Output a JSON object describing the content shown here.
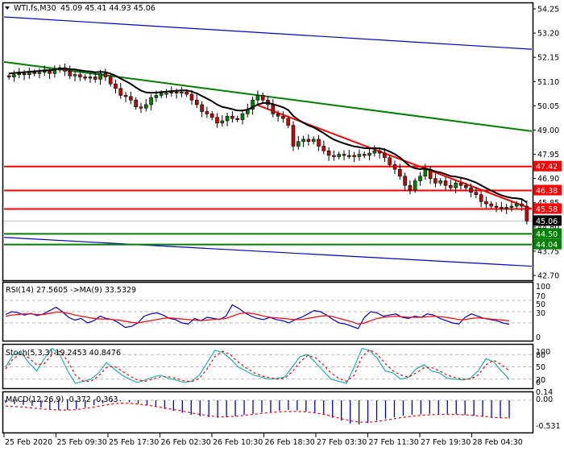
{
  "header": {
    "symbol_label": "WTI.fs,M30",
    "ohlc": "45.09 45.41 44.93 45.06",
    "dropdown_icon": "triangle-down-icon"
  },
  "chart_data": [
    {
      "type": "candlestick",
      "title": "WTI.fs,M30  45.09 45.41 44.93 45.06",
      "symbol": "WTI.fs",
      "timeframe": "M30",
      "ohlc_last": {
        "open": 45.09,
        "high": 45.41,
        "low": 44.93,
        "close": 45.06
      },
      "ylim": [
        42.7,
        54.25
      ],
      "y_ticks": [
        54.25,
        53.2,
        52.15,
        51.1,
        50.05,
        49.0,
        47.95,
        46.9,
        45.85,
        44.8,
        43.75,
        42.7
      ],
      "x_tick_labels": [
        "25 Feb 2020",
        "25 Feb 09:30",
        "25 Feb 17:30",
        "26 Feb 02:30",
        "26 Feb 10:30",
        "26 Feb 18:30",
        "27 Feb 03:30",
        "27 Feb 11:30",
        "27 Feb 19:30",
        "28 Feb 04:30"
      ],
      "horizontal_levels": [
        {
          "value": 47.42,
          "color": "#ff0000"
        },
        {
          "value": 46.38,
          "color": "#ff0000"
        },
        {
          "value": 45.58,
          "color": "#ff0000"
        },
        {
          "value": 44.5,
          "color": "#008000"
        },
        {
          "value": 44.04,
          "color": "#008000"
        }
      ],
      "current_price": {
        "value": 45.06,
        "color": "#000000"
      },
      "trend_lines": [
        {
          "name": "upper channel",
          "color": "#0000cc",
          "from": [
            0,
            53.9
          ],
          "to": [
            660,
            52.5
          ]
        },
        {
          "name": "lower channel",
          "color": "#0000cc",
          "from": [
            0,
            44.35
          ],
          "to": [
            660,
            43.1
          ]
        },
        {
          "name": "green trend",
          "color": "#008000",
          "from": [
            0,
            51.95
          ],
          "to": [
            660,
            48.95
          ]
        },
        {
          "name": "red resistance",
          "color": "#ff0000",
          "from": [
            318,
            50.1
          ],
          "to": [
            660,
            45.58
          ]
        }
      ],
      "close_series": [
        51.3,
        51.4,
        51.45,
        51.4,
        51.5,
        51.45,
        51.5,
        51.55,
        51.45,
        51.6,
        51.7,
        51.55,
        51.35,
        51.4,
        51.3,
        51.25,
        51.3,
        51.2,
        51.45,
        51.3,
        51.0,
        50.8,
        50.5,
        50.45,
        50.3,
        50.0,
        49.95,
        50.1,
        50.4,
        50.5,
        50.6,
        50.6,
        50.65,
        50.6,
        50.65,
        50.55,
        50.3,
        50.1,
        49.8,
        49.7,
        49.55,
        49.3,
        49.4,
        49.6,
        49.5,
        49.45,
        49.7,
        49.9,
        50.3,
        50.5,
        50.3,
        50.1,
        49.7,
        49.6,
        49.5,
        49.2,
        48.3,
        48.5,
        48.6,
        48.5,
        48.6,
        48.3,
        48.1,
        47.9,
        47.85,
        47.95,
        47.9,
        47.9,
        47.85,
        47.95,
        47.9,
        48.0,
        48.1,
        48.0,
        47.8,
        47.5,
        47.3,
        47.0,
        46.6,
        46.4,
        46.8,
        47.0,
        47.3,
        46.9,
        46.7,
        46.8,
        46.6,
        46.5,
        46.7,
        46.6,
        46.5,
        46.3,
        46.2,
        45.9,
        45.8,
        45.7,
        45.65,
        45.6,
        45.65,
        45.7,
        45.8,
        45.7,
        45.06
      ],
      "moving_average_color": "#000000",
      "up_candle_color": "#008000",
      "down_candle_color": "#cc0000"
    },
    {
      "type": "line",
      "title": "RSI(14) 27.5605 ->MA(9) 33.5329",
      "ylim": [
        0,
        100
      ],
      "y_ticks": [
        100,
        70,
        50,
        30,
        0
      ],
      "levels": [
        70,
        50,
        30
      ],
      "series": [
        {
          "name": "RSI(14)",
          "color": "#0000cc",
          "last": 27.5605,
          "values": [
            45,
            50,
            48,
            44,
            47,
            43,
            46,
            52,
            58,
            50,
            40,
            35,
            38,
            30,
            34,
            42,
            38,
            36,
            30,
            22,
            24,
            30,
            42,
            46,
            48,
            44,
            38,
            36,
            30,
            28,
            38,
            34,
            40,
            38,
            36,
            42,
            62,
            56,
            48,
            42,
            38,
            36,
            40,
            36,
            34,
            30,
            36,
            40,
            46,
            52,
            50,
            44,
            36,
            30,
            28,
            24,
            20,
            40,
            50,
            48,
            42,
            44,
            46,
            40,
            38,
            42,
            40,
            46,
            44,
            38,
            34,
            30,
            28,
            40,
            46,
            42,
            38,
            36,
            34,
            30,
            27.5605
          ]
        },
        {
          "name": "MA(9)",
          "color": "#ff0000",
          "last": 33.5329,
          "values": [
            42,
            44,
            45,
            46,
            46,
            45,
            45,
            47,
            49,
            49,
            47,
            44,
            42,
            40,
            38,
            37,
            37,
            36,
            35,
            33,
            31,
            30,
            32,
            34,
            36,
            38,
            39,
            38,
            37,
            36,
            35,
            34,
            35,
            36,
            37,
            38,
            42,
            46,
            48,
            47,
            45,
            42,
            40,
            39,
            38,
            37,
            36,
            36,
            38,
            40,
            42,
            43,
            41,
            38,
            35,
            32,
            28,
            30,
            34,
            38,
            40,
            41,
            42,
            41,
            40,
            40,
            40,
            41,
            42,
            41,
            40,
            38,
            36,
            36,
            38,
            39,
            38,
            37,
            36,
            35,
            33.5329
          ]
        }
      ]
    },
    {
      "type": "line",
      "title": "Stoch(5,3,3) 19.2453 40.8476",
      "ylim": [
        0,
        100
      ],
      "y_ticks": [
        100,
        80,
        50,
        20,
        0
      ],
      "levels": [
        80,
        50,
        20
      ],
      "series": [
        {
          "name": "%K",
          "color": "#20b2aa",
          "last": 19.2453,
          "values": [
            50,
            80,
            85,
            60,
            40,
            70,
            95,
            80,
            40,
            10,
            15,
            20,
            35,
            60,
            45,
            30,
            20,
            12,
            18,
            25,
            30,
            22,
            18,
            12,
            15,
            30,
            60,
            90,
            85,
            70,
            50,
            40,
            30,
            25,
            20,
            22,
            25,
            50,
            75,
            80,
            60,
            40,
            20,
            15,
            10,
            50,
            95,
            90,
            70,
            40,
            35,
            20,
            25,
            45,
            55,
            40,
            35,
            22,
            20,
            18,
            22,
            40,
            70,
            62,
            40,
            19.2453
          ]
        },
        {
          "name": "%D",
          "color": "#ff0000",
          "last": 40.8476,
          "values": [
            45,
            70,
            82,
            72,
            55,
            58,
            80,
            88,
            65,
            30,
            15,
            15,
            28,
            48,
            52,
            40,
            28,
            18,
            15,
            20,
            26,
            26,
            22,
            16,
            14,
            22,
            45,
            75,
            88,
            80,
            62,
            48,
            36,
            28,
            24,
            20,
            22,
            38,
            62,
            78,
            72,
            55,
            35,
            22,
            15,
            30,
            75,
            92,
            80,
            58,
            40,
            30,
            25,
            35,
            48,
            48,
            40,
            30,
            24,
            20,
            20,
            30,
            55,
            66,
            55,
            40.8476
          ]
        }
      ]
    },
    {
      "type": "bar",
      "title": "MACD(12,26,9) -0.372 -0.363",
      "ylim": [
        -0.531,
        0.14
      ],
      "y_ticks": [
        0.14,
        0.0,
        -0.531
      ],
      "series": [
        {
          "name": "MACD histogram",
          "color": "#0000cc",
          "last": -0.372,
          "values": [
            -0.05,
            -0.08,
            -0.1,
            -0.12,
            -0.15,
            -0.18,
            -0.2,
            -0.2,
            -0.18,
            -0.15,
            -0.1,
            -0.06,
            -0.03,
            -0.02,
            -0.04,
            -0.07,
            -0.1,
            -0.14,
            -0.18,
            -0.22,
            -0.26,
            -0.3,
            -0.33,
            -0.35,
            -0.36,
            -0.35,
            -0.33,
            -0.3,
            -0.28,
            -0.25,
            -0.24,
            -0.22,
            -0.2,
            -0.21,
            -0.23,
            -0.26,
            -0.3,
            -0.36,
            -0.42,
            -0.48,
            -0.5,
            -0.47,
            -0.42,
            -0.38,
            -0.35,
            -0.32,
            -0.3,
            -0.29,
            -0.28,
            -0.28,
            -0.28,
            -0.29,
            -0.3,
            -0.32,
            -0.34,
            -0.36,
            -0.37,
            -0.372
          ]
        },
        {
          "name": "Signal",
          "color": "#ff0000",
          "last": -0.363,
          "values": [
            -0.12,
            -0.13,
            -0.14,
            -0.16,
            -0.18,
            -0.19,
            -0.2,
            -0.2,
            -0.19,
            -0.17,
            -0.14,
            -0.11,
            -0.08,
            -0.06,
            -0.06,
            -0.08,
            -0.1,
            -0.13,
            -0.16,
            -0.19,
            -0.22,
            -0.26,
            -0.29,
            -0.32,
            -0.34,
            -0.34,
            -0.33,
            -0.31,
            -0.29,
            -0.27,
            -0.25,
            -0.24,
            -0.23,
            -0.23,
            -0.24,
            -0.26,
            -0.29,
            -0.33,
            -0.38,
            -0.42,
            -0.45,
            -0.45,
            -0.44,
            -0.41,
            -0.38,
            -0.35,
            -0.33,
            -0.31,
            -0.3,
            -0.29,
            -0.29,
            -0.29,
            -0.3,
            -0.31,
            -0.33,
            -0.35,
            -0.36,
            -0.363
          ]
        }
      ]
    }
  ],
  "price_tags": [
    {
      "label": "47.42",
      "bg": "#ff0000",
      "fg": "#ffffff"
    },
    {
      "label": "46.38",
      "bg": "#ff0000",
      "fg": "#ffffff"
    },
    {
      "label": "45.58",
      "bg": "#ff0000",
      "fg": "#ffffff"
    },
    {
      "label": "45.06",
      "bg": "#000000",
      "fg": "#ffffff"
    },
    {
      "label": "44.50",
      "bg": "#008000",
      "fg": "#ffffff"
    },
    {
      "label": "44.04",
      "bg": "#008000",
      "fg": "#ffffff"
    }
  ],
  "panels": {
    "rsi_label": "RSI(14) 27.5605  ->MA(9) 33.5329",
    "stoch_label": "Stoch(5,3,3) 19.2453 40.8476",
    "macd_label": "MACD(12,26,9) -0.372 -0.363",
    "rsi_ticks": [
      "100",
      "70",
      "50",
      "30",
      "0"
    ],
    "stoch_ticks": [
      "100",
      "80",
      "50",
      "20",
      "0"
    ],
    "macd_ticks": [
      "0.14",
      "0.00",
      "-0.531"
    ]
  },
  "axis": {
    "price_ticks": [
      "54.25",
      "53.20",
      "52.15",
      "51.10",
      "50.05",
      "49.00",
      "47.95",
      "46.90",
      "45.85",
      "44.80",
      "43.75",
      "42.70"
    ],
    "time_ticks": [
      "25 Feb 2020",
      "25 Feb 09:30",
      "25 Feb 17:30",
      "26 Feb 02:30",
      "26 Feb 10:30",
      "26 Feb 18:30",
      "27 Feb 03:30",
      "27 Feb 11:30",
      "27 Feb 19:30",
      "28 Feb 04:30"
    ]
  }
}
